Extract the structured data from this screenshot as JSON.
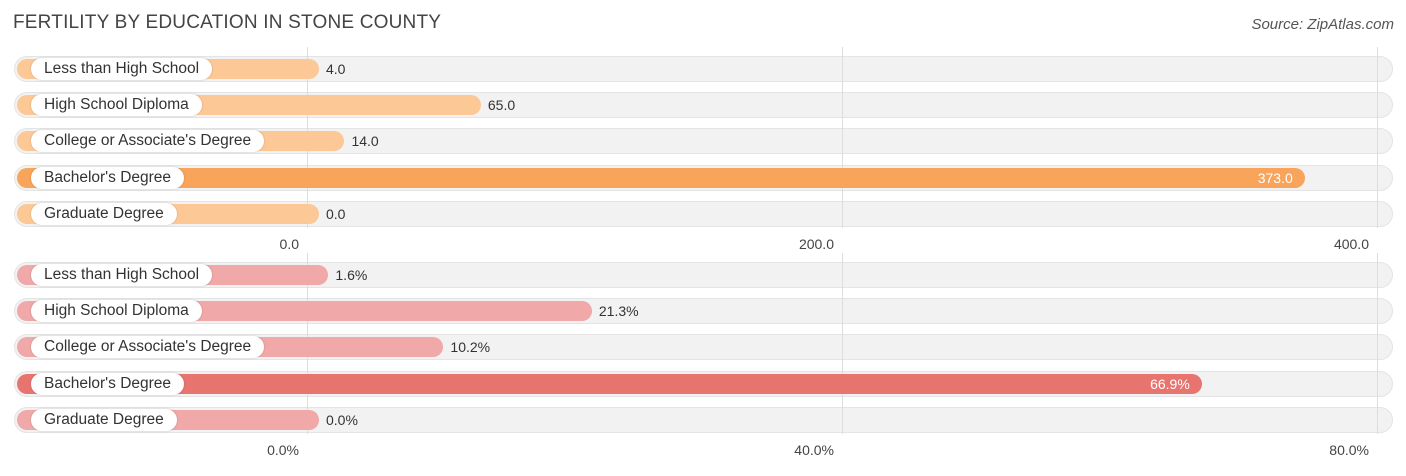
{
  "header": {
    "title": "FERTILITY BY EDUCATION IN STONE COUNTY",
    "source": "Source: ZipAtlas.com"
  },
  "colors": {
    "panel1_bar": "#fcc896",
    "panel1_highlight": "#f8a45a",
    "panel2_bar": "#f0a8a8",
    "panel2_highlight": "#e87470"
  },
  "chart_data": [
    {
      "type": "bar",
      "orientation": "horizontal",
      "categories": [
        "Less than High School",
        "High School Diploma",
        "College or Associate's Degree",
        "Bachelor's Degree",
        "Graduate Degree"
      ],
      "values": [
        4.0,
        65.0,
        14.0,
        373.0,
        0.0
      ],
      "value_labels": [
        "4.0",
        "65.0",
        "14.0",
        "373.0",
        "0.0"
      ],
      "xlim": [
        0,
        400
      ],
      "ticks": [
        0,
        200,
        400
      ],
      "tick_labels": [
        "0.0",
        "200.0",
        "400.0"
      ],
      "highlight_index": 3
    },
    {
      "type": "bar",
      "orientation": "horizontal",
      "categories": [
        "Less than High School",
        "High School Diploma",
        "College or Associate's Degree",
        "Bachelor's Degree",
        "Graduate Degree"
      ],
      "values": [
        1.6,
        21.3,
        10.2,
        66.9,
        0.0
      ],
      "value_labels": [
        "1.6%",
        "21.3%",
        "10.2%",
        "66.9%",
        "0.0%"
      ],
      "xlim": [
        0,
        80
      ],
      "ticks": [
        0,
        40,
        80
      ],
      "tick_labels": [
        "0.0%",
        "40.0%",
        "80.0%"
      ],
      "highlight_index": 3
    }
  ]
}
